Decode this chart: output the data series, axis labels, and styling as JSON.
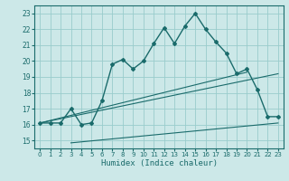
{
  "xlabel": "Humidex (Indice chaleur)",
  "xlim": [
    -0.5,
    23.5
  ],
  "ylim": [
    14.5,
    23.5
  ],
  "yticks": [
    15,
    16,
    17,
    18,
    19,
    20,
    21,
    22,
    23
  ],
  "xticks": [
    0,
    1,
    2,
    3,
    4,
    5,
    6,
    7,
    8,
    9,
    10,
    11,
    12,
    13,
    14,
    15,
    16,
    17,
    18,
    19,
    20,
    21,
    22,
    23
  ],
  "bg_color": "#cce8e8",
  "grid_color": "#99cccc",
  "line_color": "#1a6b6b",
  "main_x": [
    0,
    1,
    2,
    3,
    4,
    5,
    6,
    7,
    8,
    9,
    10,
    11,
    12,
    13,
    14,
    15,
    16,
    17,
    18,
    19,
    20,
    21,
    22,
    23
  ],
  "main_y": [
    16.1,
    16.1,
    16.1,
    17.0,
    16.0,
    16.1,
    17.5,
    19.8,
    20.1,
    19.5,
    20.0,
    21.1,
    22.1,
    21.1,
    22.2,
    23.0,
    22.0,
    21.2,
    20.5,
    19.2,
    19.5,
    18.2,
    16.5,
    16.5
  ],
  "line1_x": [
    0,
    23
  ],
  "line1_y": [
    16.1,
    19.2
  ],
  "line2_x": [
    0,
    20
  ],
  "line2_y": [
    16.1,
    19.3
  ],
  "line3_x": [
    3,
    23
  ],
  "line3_y": [
    14.85,
    16.1
  ]
}
